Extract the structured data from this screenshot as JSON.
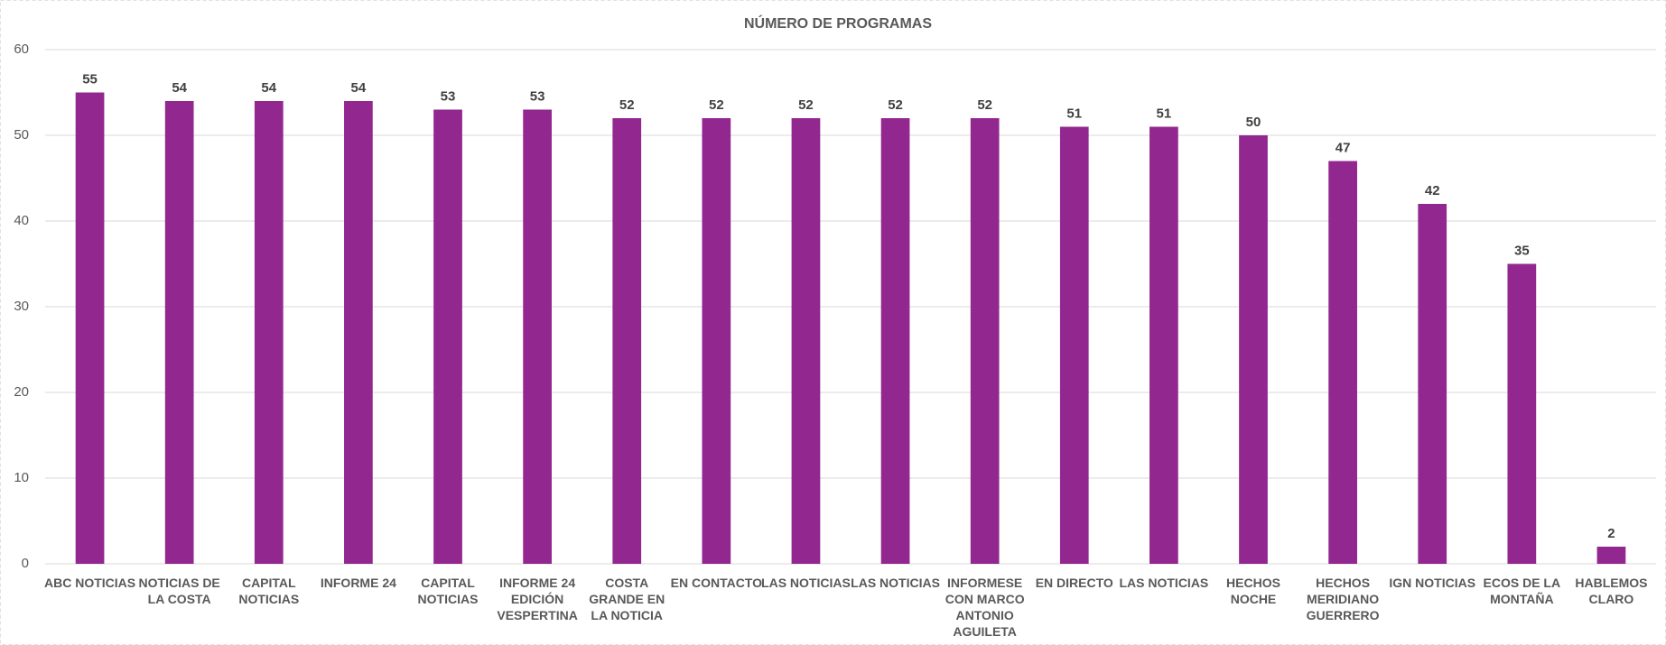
{
  "chart_data": {
    "type": "bar",
    "title": "NÚMERO DE PROGRAMAS",
    "categories": [
      "ABC NOTICIAS",
      "NOTICIAS DE LA COSTA",
      "CAPITAL NOTICIAS",
      "INFORME 24",
      "CAPITAL NOTICIAS",
      "INFORME 24 EDICIÓN VESPERTINA",
      "COSTA GRANDE EN LA NOTICIA",
      "EN CONTACTO",
      "LAS NOTICIAS",
      "LAS NOTICIAS",
      "INFORMESE CON MARCO ANTONIO AGUILETA",
      "EN DIRECTO",
      "LAS NOTICIAS",
      "HECHOS NOCHE",
      "HECHOS MERIDIANO GUERRERO",
      "IGN NOTICIAS",
      "ECOS DE LA MONTAÑA",
      "HABLEMOS CLARO"
    ],
    "values": [
      55,
      54,
      54,
      54,
      53,
      53,
      52,
      52,
      52,
      52,
      52,
      51,
      51,
      50,
      47,
      42,
      35,
      2
    ],
    "color": "#92278f",
    "ylim": [
      0,
      60
    ],
    "yticks": [
      0,
      10,
      20,
      30,
      40,
      50,
      60
    ],
    "grid": true
  }
}
